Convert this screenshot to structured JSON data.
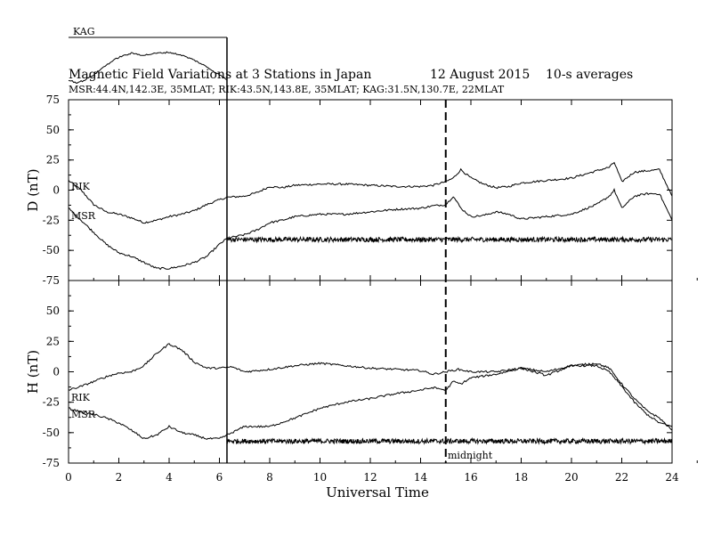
{
  "chart_data": {
    "type": "line",
    "title": "Magnetic Field Variations at 3 Stations in Japan",
    "date": "12 August  2015",
    "averaging": "10-s averages",
    "subtitle": "MSR:44.4N,142.3E, 35MLAT;  RIK:43.5N,143.8E, 35MLAT;  KAG:31.5N,130.7E, 22MLAT",
    "xlabel": "Universal Time",
    "xlim": [
      0,
      24
    ],
    "xticks": [
      "0",
      "2",
      "4",
      "6",
      "8",
      "10",
      "12",
      "14",
      "16",
      "18",
      "20",
      "22",
      "24"
    ],
    "midnight_label": "midnight",
    "midnight_ut": 15,
    "kag_label": "KAG",
    "kag_end_ut": 6.3,
    "panels": [
      {
        "id": "D",
        "ylabel": "D (nT)",
        "ylim": [
          -75,
          75
        ],
        "yticks": [
          "75",
          "50",
          "25",
          "0",
          "-25",
          "-50",
          "-75"
        ],
        "series": [
          {
            "name": "RIK",
            "x": [
              0,
              0.5,
              1,
              1.5,
              2,
              2.5,
              3,
              3.5,
              4,
              4.5,
              5,
              5.5,
              6,
              6.3,
              7,
              7.5,
              8,
              8.5,
              9,
              10,
              11,
              12,
              13,
              14,
              14.5,
              15,
              15.3,
              15.6,
              16,
              16.5,
              17,
              17.5,
              18,
              19,
              20,
              21,
              21.5,
              21.7,
              22,
              22.5,
              23,
              23.5,
              24
            ],
            "y": [
              8,
              0,
              -12,
              -18,
              -20,
              -23,
              -27,
              -25,
              -22,
              -20,
              -17,
              -12,
              -8,
              -6,
              -5,
              -2,
              3,
              2,
              4,
              5,
              5,
              4,
              3,
              3,
              4,
              7,
              10,
              17,
              10,
              5,
              2,
              3,
              6,
              8,
              10,
              16,
              19,
              23,
              7,
              15,
              16,
              17,
              -5
            ]
          },
          {
            "name": "MSR",
            "x": [
              0,
              0.5,
              1,
              1.5,
              2,
              2.5,
              3,
              3.5,
              4,
              4.5,
              5,
              5.5,
              6,
              6.3,
              7,
              7.5,
              8,
              8.5,
              9,
              10,
              11,
              12,
              13,
              14,
              14.5,
              15,
              15.3,
              15.6,
              16,
              16.5,
              17,
              17.5,
              18,
              19,
              20,
              21,
              21.5,
              21.7,
              22,
              22.5,
              23,
              23.5,
              24
            ],
            "y": [
              -15,
              -25,
              -35,
              -45,
              -52,
              -55,
              -60,
              -65,
              -65,
              -63,
              -60,
              -55,
              -45,
              -40,
              -37,
              -33,
              -27,
              -25,
              -22,
              -20,
              -20,
              -18,
              -16,
              -15,
              -13,
              -12,
              -5,
              -15,
              -22,
              -21,
              -18,
              -20,
              -24,
              -22,
              -20,
              -12,
              -5,
              0,
              -15,
              -5,
              -3,
              -3,
              -25
            ]
          },
          {
            "name": "KAG",
            "x": [
              6.3,
              8,
              10,
              12,
              14,
              16,
              18,
              20,
              22,
              24
            ],
            "y": [
              -41,
              -41,
              -41,
              -41,
              -41,
              -41,
              -41,
              -41,
              -41,
              -41
            ]
          }
        ]
      },
      {
        "id": "H",
        "ylabel": "H (nT)",
        "ylim": [
          -75,
          75
        ],
        "yticks": [
          "75",
          "50",
          "25",
          "0",
          "-25",
          "-50",
          "-75"
        ],
        "series": [
          {
            "name": "RIK",
            "x": [
              0,
              0.5,
              1,
              1.5,
              2,
              2.5,
              3,
              3.5,
              4,
              4.5,
              5,
              5.5,
              6,
              6.5,
              7,
              8,
              9,
              10,
              11,
              12,
              13,
              14,
              14.5,
              15,
              15.5,
              16,
              17,
              18,
              19,
              20,
              21,
              21.5,
              22,
              22.5,
              23,
              23.5,
              24
            ],
            "y": [
              -15,
              -12,
              -8,
              -4,
              -1,
              0,
              5,
              15,
              23,
              18,
              8,
              3,
              3,
              4,
              0,
              2,
              5,
              7,
              5,
              3,
              2,
              1,
              -2,
              0,
              2,
              0,
              0,
              3,
              0,
              5,
              7,
              3,
              -10,
              -22,
              -32,
              -38,
              -48
            ]
          },
          {
            "name": "MSR",
            "x": [
              0,
              0.5,
              1,
              1.5,
              2,
              2.5,
              3,
              3.5,
              4,
              4.5,
              5,
              5.5,
              6,
              6.3,
              7,
              7.5,
              8,
              9,
              10,
              11,
              12,
              13,
              14,
              14.5,
              15,
              15.3,
              15.6,
              16,
              17,
              18,
              19,
              20,
              21,
              21.5,
              22,
              22.5,
              23,
              23.5,
              24
            ],
            "y": [
              -30,
              -33,
              -35,
              -38,
              -42,
              -48,
              -55,
              -52,
              -45,
              -50,
              -52,
              -55,
              -55,
              -52,
              -45,
              -45,
              -45,
              -38,
              -30,
              -25,
              -22,
              -18,
              -15,
              -13,
              -15,
              -8,
              -10,
              -5,
              -2,
              3,
              -3,
              5,
              5,
              0,
              -12,
              -25,
              -35,
              -42,
              -45
            ]
          },
          {
            "name": "KAG",
            "x": [
              6.3,
              8,
              10,
              12,
              14,
              16,
              18,
              20,
              22,
              24
            ],
            "y": [
              -57,
              -57,
              -57,
              -57,
              -57,
              -57,
              -57,
              -57,
              -57,
              -57
            ]
          }
        ]
      }
    ],
    "kag_inset": {
      "x": [
        0,
        0.3,
        0.6,
        1,
        1.5,
        2,
        2.5,
        3,
        3.5,
        4,
        4.5,
        5,
        5.5,
        6,
        6.3
      ],
      "y": [
        5,
        2,
        4,
        10,
        20,
        28,
        32,
        30,
        32,
        33,
        30,
        25,
        18,
        10,
        5
      ]
    }
  }
}
